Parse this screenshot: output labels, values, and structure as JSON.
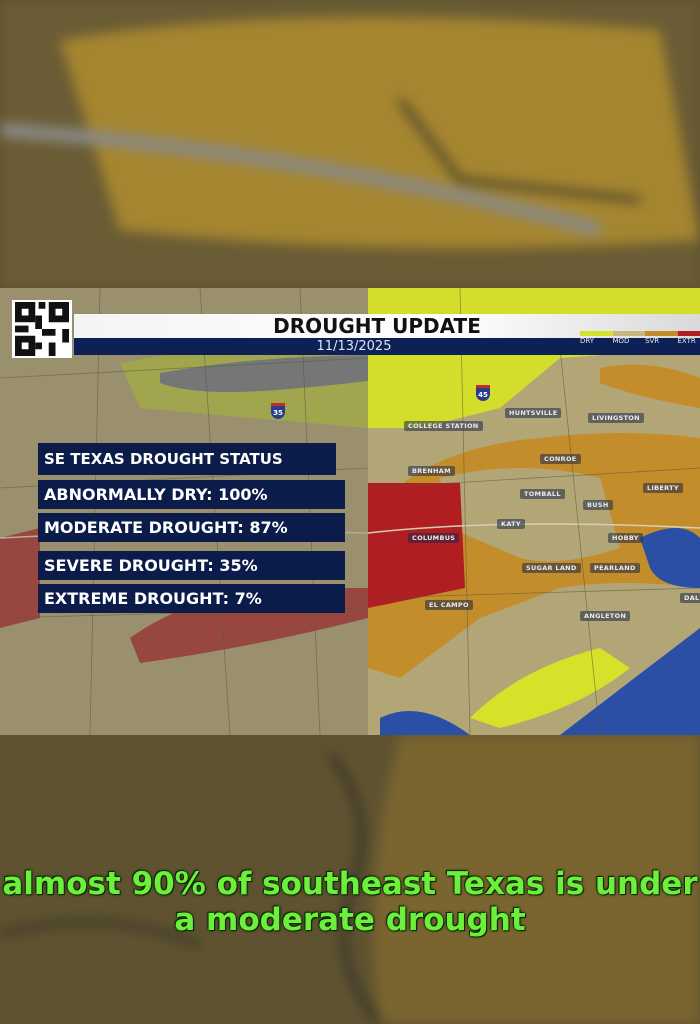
{
  "banner": {
    "title": "DROUGHT UPDATE",
    "date": "11/13/2025"
  },
  "legend": [
    {
      "label": "DRY",
      "color": "#d6e12a"
    },
    {
      "label": "MOD",
      "color": "#c9b57e"
    },
    {
      "label": "SVR",
      "color": "#c48a2a"
    },
    {
      "label": "EXTR",
      "color": "#b01e22"
    }
  ],
  "stats": {
    "title": "SE TEXAS DROUGHT STATUS",
    "rows": [
      {
        "label": "ABNORMALLY DRY: 100%",
        "value": 100
      },
      {
        "label": "MODERATE DROUGHT: 87%",
        "value": 87
      },
      {
        "label": "SEVERE DROUGHT: 35%",
        "value": 35
      },
      {
        "label": "EXTREME DROUGHT: 7%",
        "value": 7
      }
    ]
  },
  "cities": [
    "COLLEGE STATION",
    "HUNTSVILLE",
    "LIVINGSTON",
    "CONROE",
    "BRENHAM",
    "LIBERTY",
    "TOMBALL",
    "BUSH",
    "KATY",
    "COLUMBUS",
    "HOBBY",
    "SUGAR LAND",
    "PEARLAND",
    "EL CAMPO",
    "ANGLETON",
    "DAL"
  ],
  "highways": [
    "45",
    "35"
  ],
  "caption": "almost 90% of southeast Texas is under a moderate drought"
}
